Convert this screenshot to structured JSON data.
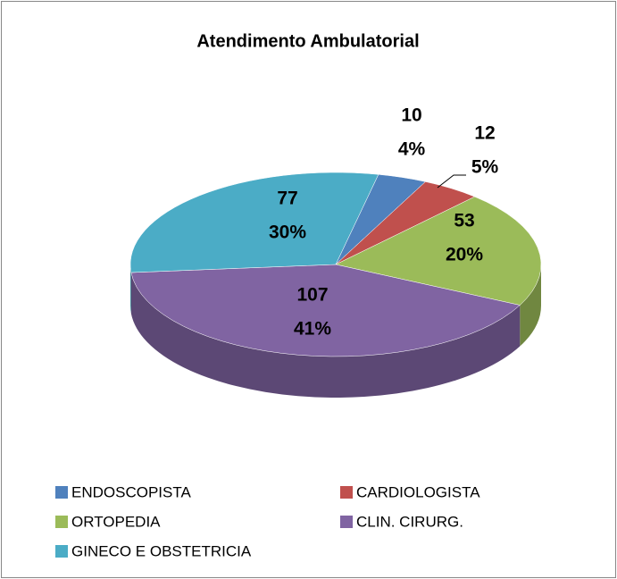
{
  "chart_data": {
    "type": "pie",
    "title": "Atendimento Ambulatorial",
    "categories": [
      "ENDOSCOPISTA",
      "CARDIOLOGISTA",
      "ORTOPEDIA",
      "CLIN. CIRURG.",
      "GINECO E OBSTETRICIA"
    ],
    "values": [
      10,
      12,
      53,
      107,
      77
    ],
    "percent_labels": [
      "4%",
      "5%",
      "20%",
      "41%",
      "30%"
    ],
    "colors": [
      "#4f81bd",
      "#c0504d",
      "#9bbb59",
      "#8064a2",
      "#4bacc6"
    ],
    "legend": "bottom"
  }
}
